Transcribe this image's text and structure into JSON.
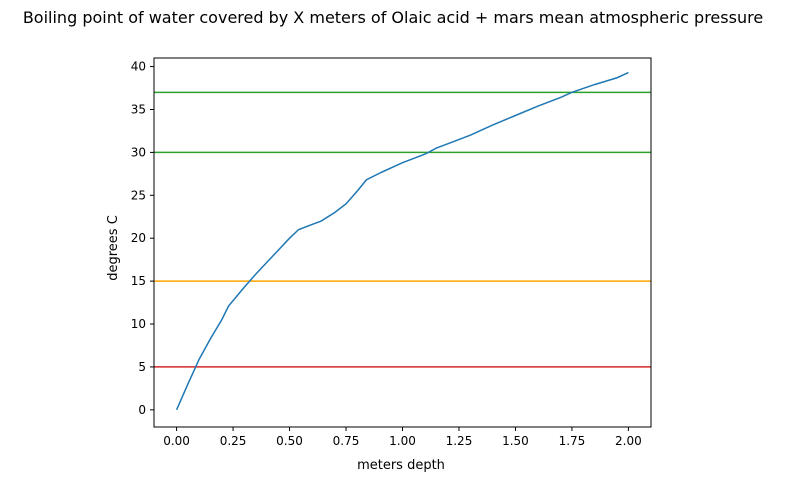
{
  "chart_data": {
    "type": "line",
    "title": "Boiling point of water covered by X meters of Olaic acid + mars mean atmospheric pressure",
    "xlabel": "meters depth",
    "ylabel": "degrees C",
    "xlim": [
      -0.1,
      2.1
    ],
    "ylim": [
      -2,
      41
    ],
    "grid": false,
    "x_ticks": [
      0.0,
      0.25,
      0.5,
      0.75,
      1.0,
      1.25,
      1.5,
      1.75,
      2.0
    ],
    "x_tick_labels": [
      "0.00",
      "0.25",
      "0.50",
      "0.75",
      "1.00",
      "1.25",
      "1.50",
      "1.75",
      "2.00"
    ],
    "y_ticks": [
      0,
      5,
      10,
      15,
      20,
      25,
      30,
      35,
      40
    ],
    "y_tick_labels": [
      "0",
      "5",
      "10",
      "15",
      "20",
      "25",
      "30",
      "35",
      "40"
    ],
    "series": [
      {
        "color": "#1f77b4",
        "x": [
          0.0,
          0.05,
          0.1,
          0.15,
          0.2,
          0.23,
          0.3,
          0.35,
          0.4,
          0.45,
          0.5,
          0.54,
          0.6,
          0.64,
          0.7,
          0.75,
          0.8,
          0.84,
          0.9,
          1.0,
          1.1,
          1.15,
          1.2,
          1.3,
          1.4,
          1.5,
          1.6,
          1.7,
          1.75,
          1.85,
          1.95,
          2.0
        ],
        "y": [
          0.0,
          3.0,
          5.9,
          8.3,
          10.5,
          12.1,
          14.3,
          15.8,
          17.2,
          18.6,
          20.0,
          21.0,
          21.6,
          22.0,
          23.0,
          24.0,
          25.5,
          26.8,
          27.6,
          28.8,
          29.8,
          30.5,
          31.0,
          32.0,
          33.2,
          34.3,
          35.4,
          36.4,
          37.0,
          37.9,
          38.7,
          39.3
        ]
      }
    ],
    "hlines": [
      {
        "y": 37,
        "color": "#2ca02c"
      },
      {
        "y": 30,
        "color": "#2ca02c"
      },
      {
        "y": 15,
        "color": "#ffa500"
      },
      {
        "y": 5,
        "color": "#d62728"
      }
    ]
  }
}
